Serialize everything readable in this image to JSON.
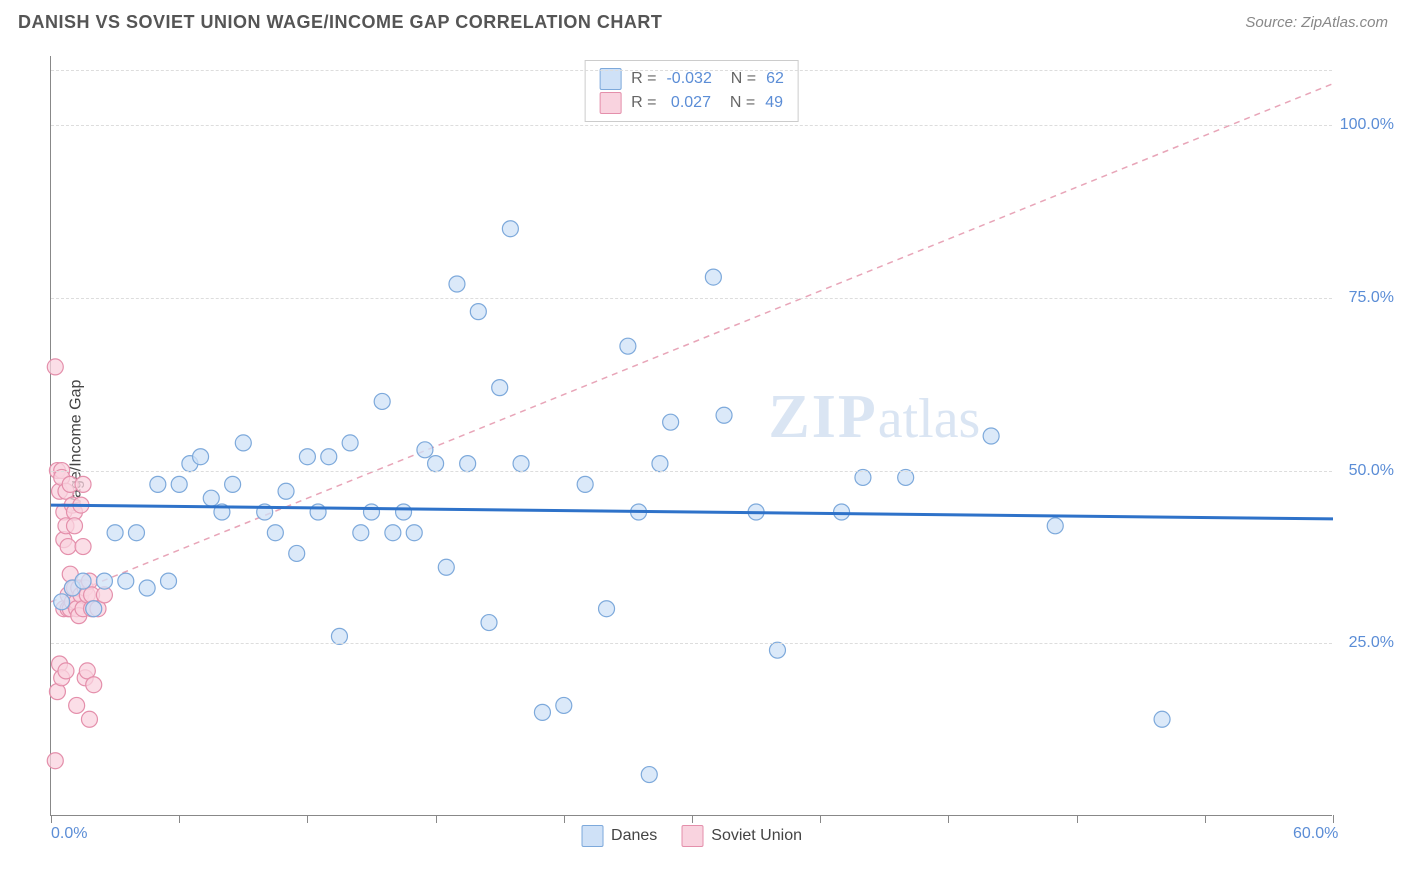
{
  "header": {
    "title": "DANISH VS SOVIET UNION WAGE/INCOME GAP CORRELATION CHART",
    "source_prefix": "Source: ",
    "source_name": "ZipAtlas.com"
  },
  "chart": {
    "type": "scatter",
    "ylabel": "Wage/Income Gap",
    "xlim": [
      0,
      60
    ],
    "ylim": [
      0,
      110
    ],
    "xtick_positions": [
      0,
      6,
      12,
      18,
      24,
      30,
      36,
      42,
      48,
      54,
      60
    ],
    "xaxis_labels": [
      {
        "pos": 0,
        "text": "0.0%"
      },
      {
        "pos": 60,
        "text": "60.0%"
      }
    ],
    "ytick_lines": [
      25,
      50,
      75,
      100,
      108
    ],
    "ytick_labels": [
      {
        "pos": 25,
        "text": "25.0%"
      },
      {
        "pos": 50,
        "text": "50.0%"
      },
      {
        "pos": 75,
        "text": "75.0%"
      },
      {
        "pos": 100,
        "text": "100.0%"
      }
    ],
    "grid_color": "#dddddd",
    "background_color": "#ffffff",
    "marker_radius": 8,
    "marker_stroke_width": 1.2,
    "series": {
      "danes": {
        "label": "Danes",
        "fill": "#cfe1f7",
        "stroke": "#7da9db",
        "R": "-0.032",
        "N": "62",
        "trend": {
          "y1": 45,
          "y2": 43,
          "color": "#2e72c9",
          "width": 3,
          "dash": "none"
        },
        "points": [
          [
            0.5,
            31
          ],
          [
            1,
            33
          ],
          [
            1.5,
            34
          ],
          [
            2,
            30
          ],
          [
            2.5,
            34
          ],
          [
            3,
            41
          ],
          [
            3.5,
            34
          ],
          [
            4,
            41
          ],
          [
            4.5,
            33
          ],
          [
            5,
            48
          ],
          [
            5.5,
            34
          ],
          [
            6,
            48
          ],
          [
            6.5,
            51
          ],
          [
            7,
            52
          ],
          [
            7.5,
            46
          ],
          [
            8,
            44
          ],
          [
            8.5,
            48
          ],
          [
            9,
            54
          ],
          [
            10,
            44
          ],
          [
            10.5,
            41
          ],
          [
            11,
            47
          ],
          [
            11.5,
            38
          ],
          [
            12,
            52
          ],
          [
            12.5,
            44
          ],
          [
            13,
            52
          ],
          [
            13.5,
            26
          ],
          [
            14,
            54
          ],
          [
            14.5,
            41
          ],
          [
            15,
            44
          ],
          [
            15.5,
            60
          ],
          [
            16,
            41
          ],
          [
            16.5,
            44
          ],
          [
            17,
            41
          ],
          [
            17.5,
            53
          ],
          [
            18,
            51
          ],
          [
            18.5,
            36
          ],
          [
            19,
            77
          ],
          [
            19.5,
            51
          ],
          [
            20,
            73
          ],
          [
            20.5,
            28
          ],
          [
            21,
            62
          ],
          [
            21.5,
            85
          ],
          [
            22,
            51
          ],
          [
            23,
            15
          ],
          [
            24,
            16
          ],
          [
            25,
            48
          ],
          [
            26,
            30
          ],
          [
            27,
            68
          ],
          [
            27.5,
            44
          ],
          [
            28,
            6
          ],
          [
            28.5,
            51
          ],
          [
            29,
            57
          ],
          [
            31,
            78
          ],
          [
            31.5,
            58
          ],
          [
            33,
            44
          ],
          [
            34,
            24
          ],
          [
            37,
            44
          ],
          [
            38,
            49
          ],
          [
            40,
            49
          ],
          [
            44,
            55
          ],
          [
            47,
            42
          ],
          [
            52,
            14
          ]
        ]
      },
      "soviet": {
        "label": "Soviet Union",
        "fill": "#f9d3df",
        "stroke": "#e48fab",
        "R": "0.027",
        "N": "49",
        "trend": {
          "y1": 31,
          "y2": 106,
          "color": "#e8a5b8",
          "width": 1.5,
          "dash": "6,5"
        },
        "points": [
          [
            0.2,
            65
          ],
          [
            0.2,
            8
          ],
          [
            0.3,
            50
          ],
          [
            0.3,
            18
          ],
          [
            0.4,
            47
          ],
          [
            0.4,
            22
          ],
          [
            0.5,
            50
          ],
          [
            0.5,
            49
          ],
          [
            0.5,
            20
          ],
          [
            0.6,
            44
          ],
          [
            0.6,
            40
          ],
          [
            0.6,
            30
          ],
          [
            0.7,
            47
          ],
          [
            0.7,
            42
          ],
          [
            0.7,
            21
          ],
          [
            0.8,
            39
          ],
          [
            0.8,
            32
          ],
          [
            0.8,
            30
          ],
          [
            0.9,
            48
          ],
          [
            0.9,
            35
          ],
          [
            0.9,
            30
          ],
          [
            1.0,
            45
          ],
          [
            1.0,
            33
          ],
          [
            1.0,
            31
          ],
          [
            1.1,
            44
          ],
          [
            1.1,
            42
          ],
          [
            1.1,
            33
          ],
          [
            1.2,
            31
          ],
          [
            1.2,
            30
          ],
          [
            1.2,
            16
          ],
          [
            1.3,
            33
          ],
          [
            1.3,
            29
          ],
          [
            1.4,
            32
          ],
          [
            1.4,
            45
          ],
          [
            1.5,
            48
          ],
          [
            1.5,
            30
          ],
          [
            1.5,
            39
          ],
          [
            1.6,
            33
          ],
          [
            1.6,
            20
          ],
          [
            1.7,
            32
          ],
          [
            1.7,
            21
          ],
          [
            1.8,
            14
          ],
          [
            1.8,
            34
          ],
          [
            1.9,
            30
          ],
          [
            1.9,
            32
          ],
          [
            2.0,
            19
          ],
          [
            2.0,
            30
          ],
          [
            2.2,
            30
          ],
          [
            2.5,
            32
          ]
        ]
      }
    },
    "watermark": {
      "bold": "ZIP",
      "rest": "atlas"
    }
  }
}
